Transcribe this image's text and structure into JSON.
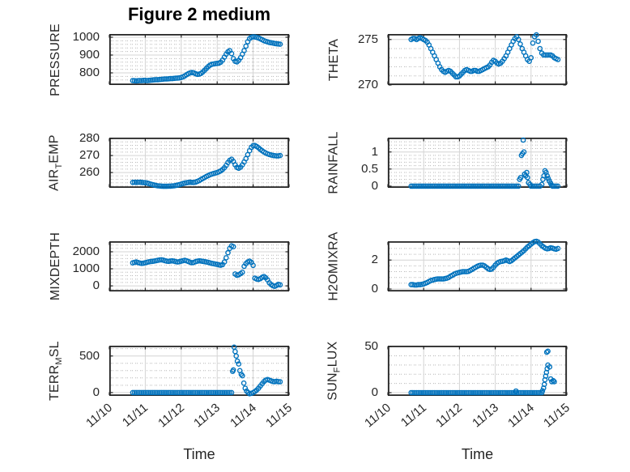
{
  "title": "Figure 2 medium",
  "x_axis": {
    "label": "Time",
    "x_unit": "days since 11/10",
    "xlim_days": [
      0,
      5
    ],
    "tick_positions": [
      0,
      1,
      2,
      3,
      4,
      5
    ],
    "tick_labels": [
      "11/10",
      "11/11",
      "11/12",
      "11/13",
      "11/14",
      "11/15"
    ]
  },
  "colors": {
    "marker": "#0072BD",
    "axis": "#262626",
    "grid_major": "#d4d4d4",
    "grid_minor": "#b8b8b8",
    "background": "#ffffff",
    "title_text": "#000000"
  },
  "marker": {
    "shape": "circle",
    "radius": 2.6,
    "stroke_width": 1.4
  },
  "chart_data": [
    {
      "type": "scatter",
      "name": "PRESSURE",
      "label_parts": [
        {
          "text": "PRESSURE",
          "sub": false
        }
      ],
      "row": 0,
      "col": 0,
      "ylim": [
        732,
        1018
      ],
      "yticks": [
        800,
        900,
        1000
      ],
      "yminor_step": 20,
      "series": [
        {
          "x0": 0.65,
          "dx": 0.05,
          "y": [
            757,
            756,
            755,
            756,
            757,
            757,
            758,
            758,
            757,
            758,
            759,
            760,
            761,
            762,
            762,
            763,
            764,
            765,
            766,
            766,
            767,
            768,
            768,
            769,
            770,
            771,
            772,
            774,
            778,
            783,
            790,
            796,
            800,
            802,
            800,
            795,
            792,
            793,
            797,
            805,
            815,
            825,
            835,
            843,
            848,
            850,
            852,
            853,
            855,
            860,
            872,
            888,
            905,
            918,
            925,
            908,
            880,
            865,
            862,
            870,
            885,
            905,
            925,
            950,
            975,
            992,
            1000,
            1002,
            1001,
            999,
            996,
            991,
            986,
            981,
            977,
            974,
            971,
            969,
            967,
            965,
            963,
            962,
            961
          ]
        }
      ]
    },
    {
      "type": "scatter",
      "name": "THETA",
      "label_parts": [
        {
          "text": "THETA",
          "sub": false
        }
      ],
      "row": 0,
      "col": 1,
      "ylim": [
        270,
        275.6
      ],
      "yticks": [
        270,
        275
      ],
      "yminor_step": 1,
      "series": [
        {
          "x0": 0.65,
          "dx": 0.05,
          "y": [
            275.0,
            275.1,
            275.1,
            275.0,
            275.1,
            275.2,
            275.1,
            275.0,
            274.9,
            274.7,
            274.4,
            274.0,
            273.6,
            273.2,
            272.8,
            272.4,
            272.0,
            271.7,
            271.5,
            271.4,
            271.5,
            271.6,
            271.5,
            271.3,
            271.1,
            270.9,
            270.9,
            271.0,
            271.2,
            271.4,
            271.6,
            271.7,
            271.6,
            271.5,
            271.5,
            271.6,
            271.6,
            271.5,
            271.5,
            271.6,
            271.7,
            271.8,
            271.9,
            272.0,
            272.2,
            272.5,
            272.7,
            272.6,
            272.4,
            272.3,
            272.4,
            272.6,
            272.9,
            273.2,
            273.6,
            274.0,
            274.4,
            274.8,
            275.1,
            275.3,
            275.0,
            274.5,
            274.0,
            273.6,
            273.2,
            272.8,
            272.6,
            273.0,
            274.6,
            275.3,
            275.5,
            274.8,
            274.0,
            273.5,
            273.3,
            273.3,
            273.3,
            273.3,
            273.3,
            273.2,
            273.0,
            272.9,
            272.8
          ]
        }
      ]
    },
    {
      "type": "scatter",
      "name": "AIR_TEMP",
      "label_parts": [
        {
          "text": "AIR",
          "sub": false
        },
        {
          "text": "T",
          "sub": true
        },
        {
          "text": "EMP",
          "sub": false
        }
      ],
      "row": 1,
      "col": 0,
      "ylim": [
        251,
        280.5
      ],
      "yticks": [
        260,
        270,
        280
      ],
      "yminor_step": 2,
      "series": [
        {
          "x0": 0.65,
          "dx": 0.05,
          "y": [
            254.2,
            254.3,
            254.2,
            254.3,
            254.3,
            254.2,
            254.1,
            254.0,
            253.8,
            253.5,
            253.2,
            252.9,
            252.6,
            252.4,
            252.2,
            252.1,
            252.0,
            251.9,
            251.9,
            251.9,
            252.0,
            252.0,
            252.1,
            252.2,
            252.4,
            252.6,
            252.9,
            253.2,
            253.5,
            253.8,
            254.0,
            254.2,
            254.3,
            254.2,
            254.2,
            254.4,
            254.8,
            255.3,
            255.9,
            256.5,
            257.1,
            257.7,
            258.2,
            258.7,
            259.1,
            259.4,
            259.7,
            260.0,
            260.4,
            261.0,
            261.8,
            262.8,
            264.2,
            265.9,
            267.2,
            267.8,
            266.5,
            264.5,
            263.0,
            262.5,
            263.2,
            264.5,
            266.2,
            268.2,
            270.5,
            272.8,
            274.8,
            275.8,
            275.9,
            275.3,
            274.5,
            273.6,
            272.8,
            272.1,
            271.5,
            271.0,
            270.6,
            270.3,
            270.1,
            269.9,
            269.8,
            269.8,
            270.0
          ]
        }
      ]
    },
    {
      "type": "scatter",
      "name": "RAINFALL",
      "label_parts": [
        {
          "text": "RAINFALL",
          "sub": false
        }
      ],
      "row": 1,
      "col": 1,
      "ylim": [
        -0.05,
        1.42
      ],
      "yticks": [
        0,
        0.5,
        1
      ],
      "yminor_step": 0.1,
      "series": [
        {
          "x0": 0.65,
          "dx": 0.05,
          "n": 61,
          "const": 0
        },
        {
          "x": [
            3.68,
            3.71,
            3.73,
            3.76,
            3.78,
            3.8,
            3.82,
            3.85,
            3.88,
            3.9,
            3.93,
            3.97
          ],
          "y": [
            0.2,
            0.25,
            0.9,
            0.95,
            1.35,
            1.0,
            0.35,
            0.3,
            0.4,
            0.25,
            0.1,
            0.05
          ]
        },
        {
          "x0": 4.0,
          "dx": 0.05,
          "n": 6,
          "const": 0
        },
        {
          "x": [
            4.3,
            4.33,
            4.36,
            4.39,
            4.42,
            4.45,
            4.48,
            4.51,
            4.55,
            4.58
          ],
          "y": [
            0.05,
            0.2,
            0.3,
            0.45,
            0.4,
            0.3,
            0.22,
            0.15,
            0.08,
            0.02
          ]
        },
        {
          "x0": 4.6,
          "dx": 0.05,
          "n": 4,
          "const": 0
        }
      ]
    },
    {
      "type": "scatter",
      "name": "MIXDEPTH",
      "label_parts": [
        {
          "text": "MIXDEPTH",
          "sub": false
        }
      ],
      "row": 2,
      "col": 0,
      "ylim": [
        -330,
        2620
      ],
      "yticks": [
        0,
        1000,
        2000
      ],
      "yminor_step": 200,
      "series": [
        {
          "x0": 0.65,
          "dx": 0.05,
          "y": [
            1350,
            1380,
            1400,
            1370,
            1340,
            1320,
            1330,
            1360,
            1390,
            1410,
            1430,
            1440,
            1460,
            1480,
            1500,
            1520,
            1530,
            1510,
            1480,
            1450,
            1440,
            1460,
            1470,
            1450,
            1420,
            1400,
            1420,
            1450,
            1480,
            1500,
            1470,
            1430,
            1390,
            1360,
            1380,
            1420,
            1450,
            1470,
            1460,
            1440,
            1420,
            1400,
            1380,
            1350,
            1320,
            1300,
            1280,
            1260,
            1230,
            1210,
            1250,
            1400,
            1650,
            1950,
            2200,
            2350,
            2300,
            700,
            620,
            650,
            720,
            800,
            1150,
            1300,
            1400,
            1450,
            1380,
            1200,
            450,
            400,
            380,
            420,
            500,
            550,
            480,
            350,
            180,
            80,
            10,
            -30,
            20,
            90,
            60
          ]
        }
      ]
    },
    {
      "type": "scatter",
      "name": "H2OMIXRA",
      "label_parts": [
        {
          "text": "H2OMIXRA",
          "sub": false
        }
      ],
      "row": 2,
      "col": 1,
      "ylim": [
        -0.17,
        3.3
      ],
      "yticks": [
        0,
        2
      ],
      "yminor_step": 0.4,
      "series": [
        {
          "x0": 0.65,
          "dx": 0.05,
          "y": [
            0.3,
            0.3,
            0.28,
            0.28,
            0.3,
            0.3,
            0.32,
            0.35,
            0.4,
            0.45,
            0.52,
            0.58,
            0.62,
            0.65,
            0.68,
            0.7,
            0.7,
            0.7,
            0.7,
            0.72,
            0.75,
            0.8,
            0.88,
            0.95,
            1.02,
            1.08,
            1.12,
            1.15,
            1.18,
            1.2,
            1.2,
            1.2,
            1.22,
            1.28,
            1.35,
            1.43,
            1.5,
            1.57,
            1.62,
            1.65,
            1.65,
            1.6,
            1.5,
            1.4,
            1.35,
            1.38,
            1.5,
            1.65,
            1.78,
            1.85,
            1.9,
            1.92,
            1.95,
            2.0,
            1.95,
            1.9,
            1.95,
            2.05,
            2.15,
            2.25,
            2.35,
            2.45,
            2.55,
            2.65,
            2.78,
            2.9,
            3.0,
            3.1,
            3.2,
            3.28,
            3.3,
            3.25,
            3.12,
            3.0,
            2.9,
            2.82,
            2.78,
            2.8,
            2.85,
            2.82,
            2.78,
            2.75,
            2.8
          ]
        }
      ]
    },
    {
      "type": "scatter",
      "name": "TERR_MSL",
      "label_parts": [
        {
          "text": "TERR",
          "sub": false
        },
        {
          "text": "M",
          "sub": true
        },
        {
          "text": "SL",
          "sub": false
        }
      ],
      "row": 3,
      "col": 0,
      "ylim": [
        -45,
        640
      ],
      "yticks": [
        0,
        500
      ],
      "yminor_step": 100,
      "series": [
        {
          "x0": 0.65,
          "dx": 0.05,
          "n": 56,
          "const": 0
        },
        {
          "x": [
            3.43,
            3.45,
            3.47,
            3.5,
            3.53,
            3.56,
            3.6,
            3.63,
            3.67,
            3.7,
            3.74,
            3.78,
            3.82,
            3.86,
            3.9
          ],
          "y": [
            290,
            310,
            620,
            560,
            500,
            430,
            390,
            300,
            250,
            230,
            130,
            60,
            20,
            0,
            -15
          ]
        },
        {
          "x": [
            3.95,
            4.0,
            4.05,
            4.1,
            4.15,
            4.2,
            4.25,
            4.3,
            4.35,
            4.4,
            4.45,
            4.5,
            4.55,
            4.6,
            4.65,
            4.7,
            4.75
          ],
          "y": [
            -10,
            0,
            15,
            35,
            60,
            90,
            120,
            150,
            170,
            178,
            170,
            160,
            152,
            150,
            155,
            150,
            148
          ]
        }
      ]
    },
    {
      "type": "scatter",
      "name": "SUN_FLUX",
      "label_parts": [
        {
          "text": "SUN",
          "sub": false
        },
        {
          "text": "F",
          "sub": true
        },
        {
          "text": "LUX",
          "sub": false
        }
      ],
      "row": 3,
      "col": 1,
      "ylim": [
        -3.5,
        51
      ],
      "yticks": [
        0,
        50
      ],
      "yminor_step": 10,
      "series": [
        {
          "x0": 0.65,
          "dx": 0.05,
          "n": 53,
          "const": 0
        },
        {
          "x": [
            3.58
          ],
          "y": [
            1.8
          ]
        },
        {
          "x0": 3.3,
          "dx": 0.05,
          "n": 21,
          "const": 0
        },
        {
          "x": [
            4.32,
            4.35,
            4.37,
            4.39,
            4.41,
            4.43,
            4.45,
            4.47,
            4.44,
            4.47,
            4.52,
            4.55,
            4.58,
            4.62,
            4.65
          ],
          "y": [
            2,
            5,
            9,
            14,
            18,
            22,
            26,
            30,
            44,
            45,
            28,
            15,
            12,
            13,
            12
          ]
        }
      ]
    }
  ]
}
